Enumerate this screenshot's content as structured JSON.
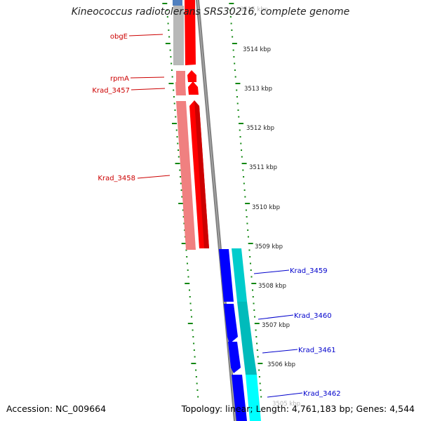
{
  "title": "Kineococcus radiotolerans SRS30216, complete genome",
  "accession": "Accession: NC_009664",
  "topology": "Topology: linear; Length: 4,761,183 bp; Genes: 4,544",
  "colors": {
    "forward_gene": "#ff0000",
    "forward_gene_light": "#f08080",
    "reverse_gene": "#0000ff",
    "reverse_gene_alt": "#00cccc",
    "pseudo_gene": "#bbbbbb",
    "ruler_ticks": "#118811",
    "backbone": "#777777"
  },
  "genes_left": [
    {
      "label": "obgE"
    },
    {
      "label": "rpmA"
    },
    {
      "label": "Krad_3457"
    },
    {
      "label": "Krad_3458"
    }
  ],
  "genes_right": [
    {
      "label": "Krad_3459"
    },
    {
      "label": "Krad_3460"
    },
    {
      "label": "Krad_3461"
    },
    {
      "label": "Krad_3462"
    }
  ],
  "kbp_labels": [
    "3515 kbp",
    "3514 kbp",
    "3513 kbp",
    "3512 kbp",
    "3511 kbp",
    "3510 kbp",
    "3509 kbp",
    "3508 kbp",
    "3507 kbp",
    "3506 kbp",
    "3505 kbp"
  ]
}
